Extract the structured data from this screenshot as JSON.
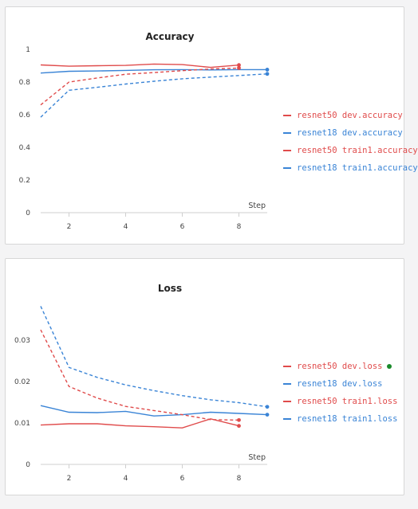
{
  "colors": {
    "red": "#e04b4b",
    "blue": "#3a84d6",
    "active_dot": "#1a8a2a"
  },
  "chart_data": [
    {
      "type": "line",
      "title": "Accuracy",
      "xlabel": "Step",
      "x_ticks": [
        2,
        4,
        6,
        8
      ],
      "y_ticks": [
        {
          "value": 0,
          "label": "0"
        },
        {
          "value": 0.2,
          "label": "0.2"
        },
        {
          "value": 0.4,
          "label": "0.4"
        },
        {
          "value": 0.6,
          "label": "0.6"
        },
        {
          "value": 0.8,
          "label": "0.8"
        },
        {
          "value": 1,
          "label": "1"
        }
      ],
      "xlim": [
        1,
        9
      ],
      "ylim": [
        0,
        1
      ],
      "legend_position": "right",
      "series": [
        {
          "name": "resnet50 dev.accuracy",
          "color": "#e04b4b",
          "dash": false,
          "x": [
            1,
            2,
            3,
            4,
            5,
            6,
            7,
            8
          ],
          "y": [
            0.905,
            0.897,
            0.9,
            0.902,
            0.91,
            0.907,
            0.89,
            0.904
          ],
          "last_marker": true
        },
        {
          "name": "resnet18 dev.accuracy",
          "color": "#3a84d6",
          "dash": false,
          "x": [
            1,
            2,
            3,
            4,
            5,
            6,
            7,
            8,
            9
          ],
          "y": [
            0.855,
            0.866,
            0.868,
            0.871,
            0.875,
            0.876,
            0.874,
            0.876,
            0.876
          ],
          "last_marker": true
        },
        {
          "name": "resnet50 train1.accuracy",
          "color": "#e04b4b",
          "dash": true,
          "x": [
            1,
            2,
            3,
            4,
            5,
            6,
            7,
            8
          ],
          "y": [
            0.66,
            0.8,
            0.825,
            0.848,
            0.858,
            0.87,
            0.88,
            0.886
          ],
          "last_marker": true
        },
        {
          "name": "resnet18 train1.accuracy",
          "color": "#3a84d6",
          "dash": true,
          "x": [
            1,
            2,
            3,
            4,
            5,
            6,
            7,
            8,
            9
          ],
          "y": [
            0.585,
            0.75,
            0.768,
            0.788,
            0.805,
            0.82,
            0.83,
            0.84,
            0.85
          ],
          "last_marker": true
        }
      ]
    },
    {
      "type": "line",
      "title": "Loss",
      "xlabel": "Step",
      "x_ticks": [
        2,
        4,
        6,
        8
      ],
      "y_ticks": [
        {
          "value": 0,
          "label": "0"
        },
        {
          "value": 0.01,
          "label": "0.01"
        },
        {
          "value": 0.02,
          "label": "0.02"
        },
        {
          "value": 0.03,
          "label": "0.03"
        }
      ],
      "xlim": [
        1,
        9
      ],
      "ylim": [
        0,
        0.04
      ],
      "legend_position": "right",
      "series": [
        {
          "name": "resnet50 dev.loss",
          "color": "#e04b4b",
          "dash": false,
          "active_dot": true,
          "x": [
            1,
            2,
            3,
            4,
            5,
            6,
            7,
            8
          ],
          "y": [
            0.0095,
            0.0098,
            0.0098,
            0.0093,
            0.0091,
            0.0088,
            0.011,
            0.0093
          ],
          "last_marker": true
        },
        {
          "name": "resnet18 dev.loss",
          "color": "#3a84d6",
          "dash": false,
          "x": [
            1,
            2,
            3,
            4,
            5,
            6,
            7,
            8,
            9
          ],
          "y": [
            0.0142,
            0.0126,
            0.0125,
            0.0128,
            0.0117,
            0.012,
            0.0126,
            0.0123,
            0.012
          ],
          "last_marker": true
        },
        {
          "name": "resnet50 train1.loss",
          "color": "#e04b4b",
          "dash": true,
          "x": [
            1,
            2,
            3,
            4,
            5,
            6,
            7,
            8
          ],
          "y": [
            0.0325,
            0.0188,
            0.016,
            0.014,
            0.013,
            0.012,
            0.0108,
            0.0107
          ],
          "last_marker": true
        },
        {
          "name": "resnet18 train1.loss",
          "color": "#3a84d6",
          "dash": true,
          "x": [
            1,
            2,
            3,
            4,
            5,
            6,
            7,
            8,
            9
          ],
          "y": [
            0.0382,
            0.0234,
            0.021,
            0.0192,
            0.0178,
            0.0166,
            0.0156,
            0.0149,
            0.0139
          ],
          "last_marker": true
        }
      ]
    }
  ]
}
